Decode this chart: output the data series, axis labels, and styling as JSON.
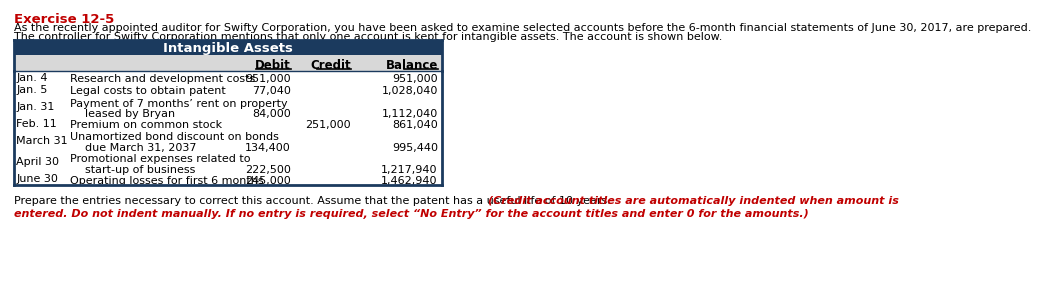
{
  "title_exercise": "Exercise 12-5",
  "para1": "As the recently appointed auditor for Swifty Corporation, you have been asked to examine selected accounts before the 6-month financial statements of June 30, 2017, are prepared.",
  "para2": "The controller for Swifty Corporation mentions that only one account is kept for intangible assets. The account is shown below.",
  "table_title": "Intangible Assets",
  "table_title_bg": "#1b3a5e",
  "table_title_color": "#ffffff",
  "header_bg": "#d8d8d8",
  "rows": [
    {
      "date": "Jan. 4",
      "desc1": "Research and development costs",
      "desc2": "",
      "debit": "951,000",
      "credit": "",
      "balance": "951,000"
    },
    {
      "date": "Jan. 5",
      "desc1": "Legal costs to obtain patent",
      "desc2": "",
      "debit": "77,040",
      "credit": "",
      "balance": "1,028,040"
    },
    {
      "date": "Jan. 31",
      "desc1": "Payment of 7 months’ rent on property",
      "desc2": "leased by Bryan",
      "debit": "84,000",
      "credit": "",
      "balance": "1,112,040"
    },
    {
      "date": "Feb. 11",
      "desc1": "Premium on common stock",
      "desc2": "",
      "debit": "",
      "credit": "251,000",
      "balance": "861,040"
    },
    {
      "date": "March 31",
      "desc1": "Unamortized bond discount on bonds",
      "desc2": "due March 31, 2037",
      "debit": "134,400",
      "credit": "",
      "balance": "995,440"
    },
    {
      "date": "April 30",
      "desc1": "Promotional expenses related to",
      "desc2": "start-up of business",
      "debit": "222,500",
      "credit": "",
      "balance": "1,217,940"
    },
    {
      "date": "June 30",
      "desc1": "Operating losses for first 6 months",
      "desc2": "",
      "debit": "245,000",
      "credit": "",
      "balance": "1,462,940"
    }
  ],
  "footer_black": "Prepare the entries necessary to correct this account. Assume that the patent has a useful life of 10 years. ",
  "footer_red": "(Credit account titles are automatically indented when amount is entered. Do not indent manually. If no entry is required, select “No Entry” for the account titles and enter 0 for the amounts.)",
  "exercise_color": "#c00000",
  "text_color": "#000000",
  "footer_red_color": "#c00000",
  "table_border_color": "#1b3a5e"
}
